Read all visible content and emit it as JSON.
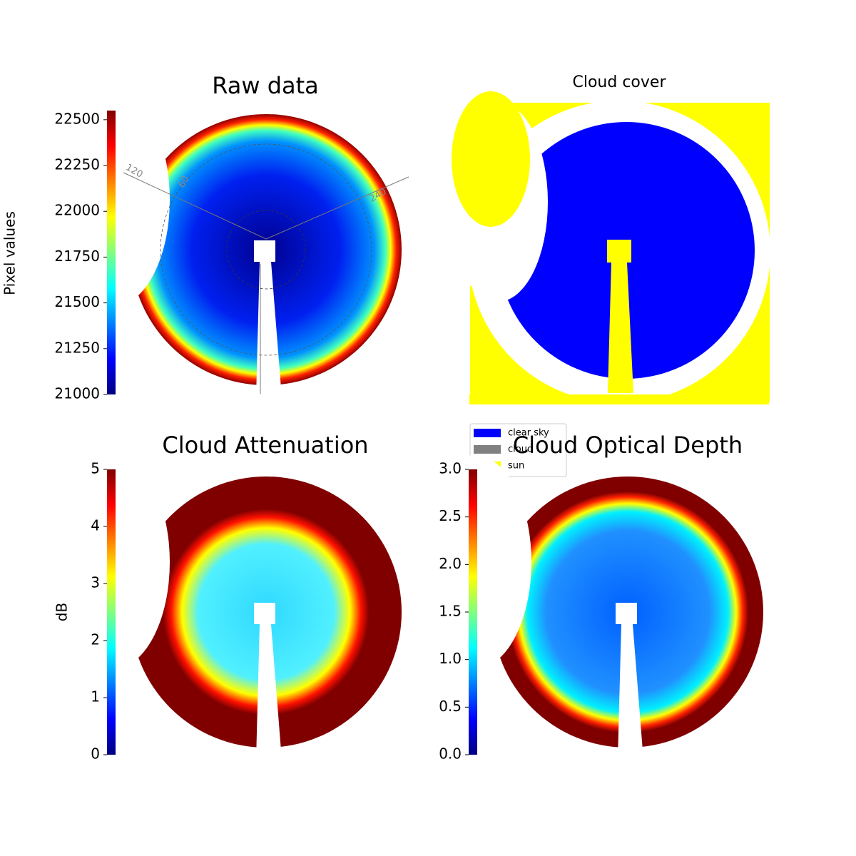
{
  "chart_data": [
    {
      "type": "image",
      "title": "Raw data",
      "ylabel": "Pixel values",
      "ylim": [
        21000,
        22550
      ],
      "yticks": [
        21000,
        21250,
        21500,
        21750,
        22000,
        22250,
        22500
      ],
      "colormap": "jet",
      "annotations": [
        "120",
        "60",
        "240"
      ]
    },
    {
      "type": "mask",
      "title": "Cloud cover",
      "series": [
        {
          "name": "clear sky",
          "color": "#0000ff"
        },
        {
          "name": "cloud",
          "color": "#808080"
        },
        {
          "name": "sun",
          "color": "#ffff00"
        }
      ]
    },
    {
      "type": "image",
      "title": "Cloud Attenuation",
      "ylabel": "dB",
      "ylim": [
        0,
        5
      ],
      "yticks": [
        0,
        1,
        2,
        3,
        4,
        5
      ],
      "colormap": "jet"
    },
    {
      "type": "image",
      "title": "Cloud Optical Depth",
      "ylim": [
        0,
        3
      ],
      "yticks": [
        {
          "value": 0,
          "label": "0.0"
        },
        {
          "value": 0.5,
          "label": "0.5"
        },
        {
          "value": 1,
          "label": "1.0"
        },
        {
          "value": 1.5,
          "label": "1.5"
        },
        {
          "value": 2,
          "label": "2.0"
        },
        {
          "value": 2.5,
          "label": "2.5"
        },
        {
          "value": 3,
          "label": "3.0"
        }
      ],
      "colormap": "jet"
    }
  ]
}
